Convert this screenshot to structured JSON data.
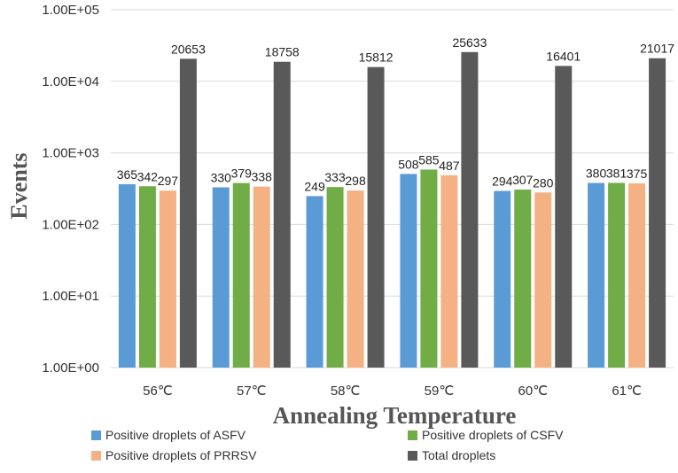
{
  "chart_data": {
    "type": "bar",
    "title": "",
    "xlabel": "Annealing Temperature",
    "ylabel": "Events",
    "yscale": "log",
    "ylim": [
      1,
      100000
    ],
    "yticks": [
      {
        "value": 1,
        "label": "1.00E+00"
      },
      {
        "value": 10,
        "label": "1.00E+01"
      },
      {
        "value": 100,
        "label": "1.00E+02"
      },
      {
        "value": 1000,
        "label": "1.00E+03"
      },
      {
        "value": 10000,
        "label": "1.00E+04"
      },
      {
        "value": 100000,
        "label": "1.00E+05"
      }
    ],
    "grid": true,
    "categories": [
      "56℃",
      "57℃",
      "58℃",
      "59℃",
      "60℃",
      "61℃"
    ],
    "series": [
      {
        "name": "Positive droplets of ASFV",
        "color": "#5b9bd5",
        "values": [
          365,
          330,
          249,
          508,
          294,
          380
        ]
      },
      {
        "name": "Positive droplets of CSFV",
        "color": "#70ad47",
        "values": [
          342,
          379,
          333,
          585,
          307,
          381
        ]
      },
      {
        "name": "Positive droplets of PRRSV",
        "color": "#f4b183",
        "values": [
          297,
          338,
          298,
          487,
          280,
          375
        ]
      },
      {
        "name": "Total droplets",
        "color": "#595959",
        "values": [
          20653,
          18758,
          15812,
          25633,
          16401,
          21017
        ]
      }
    ],
    "legend_position": "bottom"
  }
}
